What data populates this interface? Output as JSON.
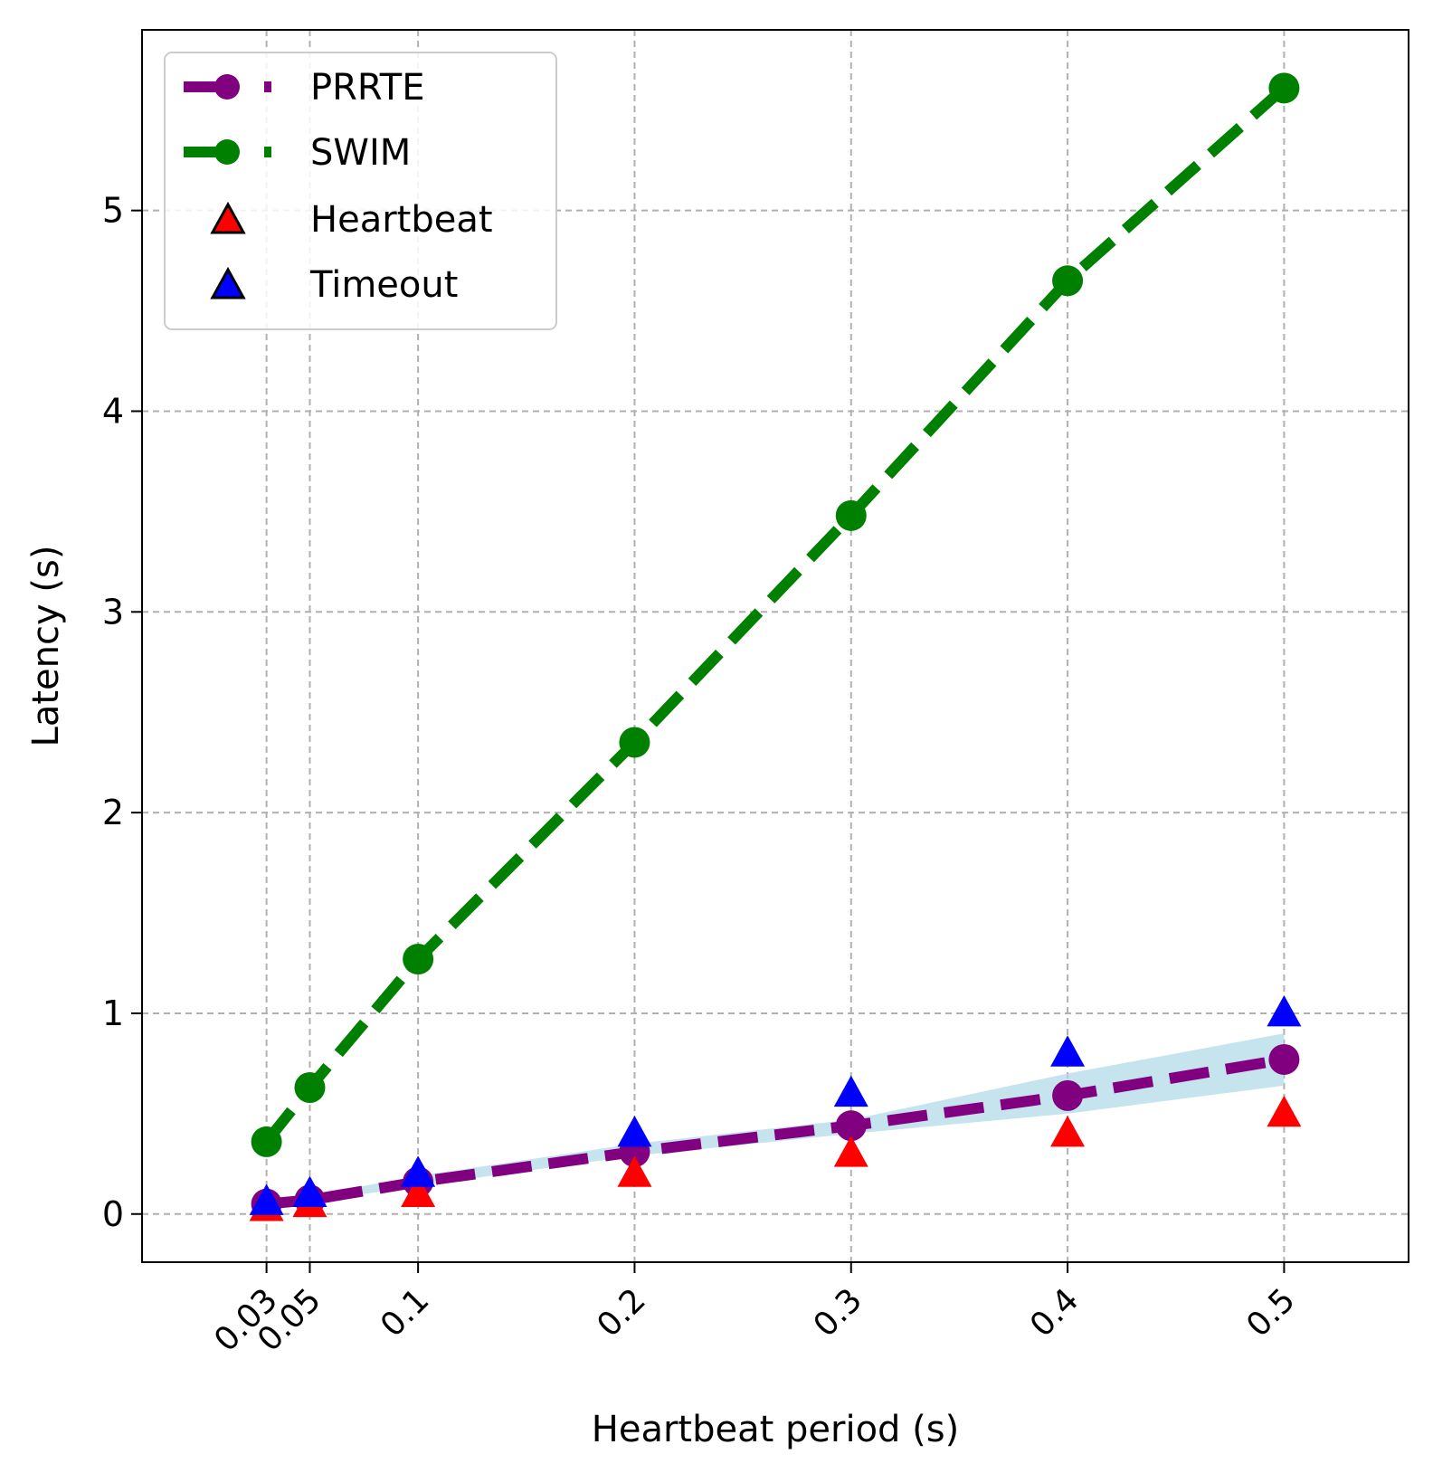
{
  "chart_data": {
    "type": "line",
    "title": "",
    "xlabel": "Heartbeat period (s)",
    "ylabel": "Latency (s)",
    "xlim": [
      -0.0275,
      0.5575
    ],
    "ylim": [
      -0.24,
      5.9
    ],
    "grid": true,
    "legend_position": "top-left",
    "x_ticks": [
      0.03,
      0.05,
      0.1,
      0.2,
      0.3,
      0.4,
      0.5
    ],
    "x_tick_labels": [
      "0.03",
      "0.05",
      "0.1",
      "0.2",
      "0.3",
      "0.4",
      "0.5"
    ],
    "y_ticks": [
      0,
      1,
      2,
      3,
      4,
      5
    ],
    "y_tick_labels": [
      "0",
      "1",
      "2",
      "3",
      "4",
      "5"
    ],
    "series": [
      {
        "name": "PRRTE",
        "kind": "dashed-line-markers",
        "color": "#800080",
        "x": [
          0.03,
          0.05,
          0.1,
          0.2,
          0.3,
          0.4,
          0.5
        ],
        "y": [
          0.05,
          0.07,
          0.16,
          0.31,
          0.44,
          0.59,
          0.77
        ],
        "band_color": "#add8e6",
        "band_low": [
          0.04,
          0.06,
          0.14,
          0.29,
          0.4,
          0.5,
          0.64
        ],
        "band_high": [
          0.06,
          0.09,
          0.19,
          0.35,
          0.47,
          0.7,
          0.9
        ]
      },
      {
        "name": "SWIM",
        "kind": "dashed-line-markers",
        "color": "#008000",
        "x": [
          0.03,
          0.05,
          0.1,
          0.2,
          0.3,
          0.4,
          0.5
        ],
        "y": [
          0.36,
          0.63,
          1.27,
          2.35,
          3.48,
          4.65,
          5.61
        ]
      },
      {
        "name": "Heartbeat",
        "kind": "triangle-markers",
        "color": "#ff0000",
        "x": [
          0.03,
          0.05,
          0.1,
          0.2,
          0.3,
          0.4,
          0.5
        ],
        "y": [
          0.03,
          0.05,
          0.1,
          0.2,
          0.3,
          0.4,
          0.5
        ]
      },
      {
        "name": "Timeout",
        "kind": "triangle-markers",
        "color": "#0000ff",
        "x": [
          0.03,
          0.05,
          0.1,
          0.2,
          0.3,
          0.4,
          0.5
        ],
        "y": [
          0.06,
          0.1,
          0.2,
          0.4,
          0.6,
          0.8,
          1.0
        ]
      }
    ]
  }
}
